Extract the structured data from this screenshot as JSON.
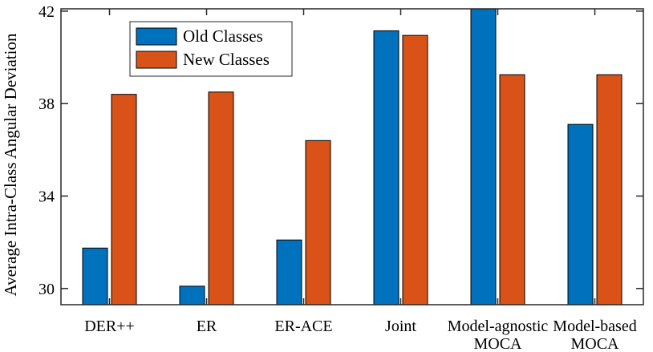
{
  "chart_data": {
    "type": "bar",
    "categories": [
      [
        "DER++"
      ],
      [
        "ER"
      ],
      [
        "ER-ACE"
      ],
      [
        "Joint"
      ],
      [
        "Model-agnostic",
        "MOCA"
      ],
      [
        "Model-based",
        "MOCA"
      ]
    ],
    "series": [
      {
        "name": "Old Classes",
        "color": "#0072BD",
        "values": [
          31.75,
          30.1,
          32.1,
          41.15,
          42.3,
          37.1
        ]
      },
      {
        "name": "New Classes",
        "color": "#D95319",
        "values": [
          38.4,
          38.5,
          36.4,
          40.95,
          39.25,
          39.25
        ]
      }
    ],
    "ylabel": "Average Intra-Class Angular Deviation",
    "xlabel": "",
    "title": "",
    "ylim": [
      29.3,
      42.1
    ],
    "yticks": [
      30,
      34,
      38,
      42
    ],
    "grid": false,
    "legend_position": "top-left"
  }
}
